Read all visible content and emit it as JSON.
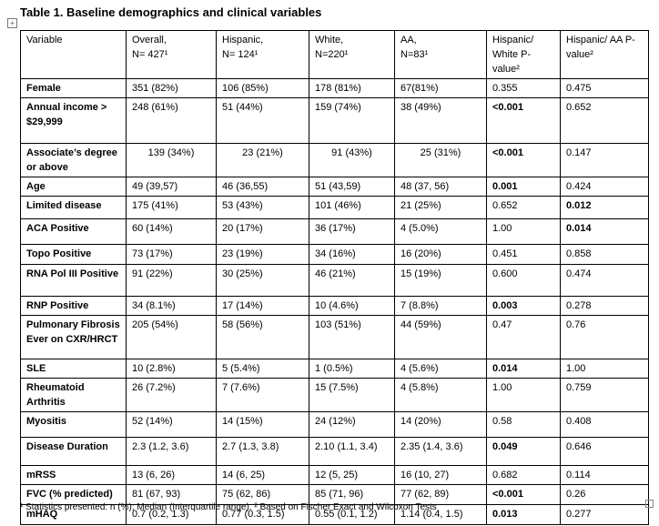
{
  "title": "Table 1. Baseline demographics and clinical variables",
  "table": {
    "header": [
      [
        "Variable"
      ],
      [
        "Overall,",
        "N= 427¹"
      ],
      [
        "Hispanic,",
        "N= 124¹"
      ],
      [
        "White,",
        "N=220¹"
      ],
      [
        "AA,",
        "N=83¹"
      ],
      [
        "Hispanic/ White P-value²"
      ],
      [
        "Hispanic/ AA P-value²"
      ]
    ],
    "rows": [
      [
        "Female",
        "351 (82%)",
        "106 (85%)",
        "178 (81%)",
        "67(81%)",
        "0.355",
        "0.475"
      ],
      [
        "Annual income > $29,999",
        "248 (61%)",
        "51 (44%)",
        "159 (74%)",
        "38 (49%)",
        "<0.001",
        "0.652"
      ],
      [
        "Associate’s degree or above",
        "139 (34%)",
        "23 (21%)",
        "91 (43%)",
        "25 (31%)",
        "<0.001",
        "0.147"
      ],
      [
        "Age",
        "49 (39,57)",
        "46 (36,55)",
        "51 (43,59)",
        "48 (37, 56)",
        "0.001",
        "0.424"
      ],
      [
        "Limited disease",
        "175 (41%)",
        "53 (43%)",
        "101 (46%)",
        "21 (25%)",
        "0.652",
        "0.012"
      ],
      [
        "ACA Positive",
        "60 (14%)",
        "20 (17%)",
        "36 (17%)",
        "4 (5.0%)",
        "1.00",
        "0.014"
      ],
      [
        "Topo Positive",
        "73 (17%)",
        "23 (19%)",
        "34 (16%)",
        "16 (20%)",
        "0.451",
        "0.858"
      ],
      [
        "RNA Pol III Positive",
        "91 (22%)",
        "30 (25%)",
        "46 (21%)",
        "15 (19%)",
        "0.600",
        "0.474"
      ],
      [
        "RNP Positive",
        "34 (8.1%)",
        "17 (14%)",
        "10 (4.6%)",
        "7 (8.8%)",
        "0.003",
        "0.278"
      ],
      [
        "Pulmonary Fibrosis Ever on CXR/HRCT",
        "205 (54%)",
        "58 (56%)",
        "103 (51%)",
        "44 (59%)",
        "0.47",
        "0.76"
      ],
      [
        "SLE",
        "10 (2.8%)",
        "5 (5.4%)",
        "1 (0.5%)",
        "4 (5.6%)",
        "0.014",
        "1.00"
      ],
      [
        "Rheumatoid Arthritis",
        "26 (7.2%)",
        "7 (7.6%)",
        "15 (7.5%)",
        "4 (5.8%)",
        "1.00",
        "0.759"
      ],
      [
        "Myositis",
        "52 (14%)",
        "14 (15%)",
        "24 (12%)",
        "14 (20%)",
        "0.58",
        "0.408"
      ],
      [
        "Disease Duration",
        "2.3 (1.2, 3.6)",
        "2.7 (1.3, 3.8)",
        "2.10 (1.1, 3.4)",
        "2.35 (1.4, 3.6)",
        "0.049",
        "0.646"
      ],
      [
        "mRSS",
        "13 (6, 26)",
        "14 (6, 25)",
        "12 (5, 25)",
        "16 (10, 27)",
        "0.682",
        "0.114"
      ],
      [
        "FVC (% predicted)",
        "81 (67, 93)",
        "75 (62, 86)",
        "85 (71, 96)",
        "77 (62, 89)",
        "<0.001",
        "0.26"
      ],
      [
        "mHAQ",
        "0.7 (0.2, 1.3)",
        "0.77 (0.3, 1.5)",
        "0.55 (0.1, 1.2)",
        "1.14 (0.4, 1.5)",
        "0.013",
        "0.277"
      ]
    ]
  },
  "footnote": "¹ Statistics presented: n (%); Median (Interquartile range). ² Based on Fischer Exact and Wilcoxon Tests"
}
